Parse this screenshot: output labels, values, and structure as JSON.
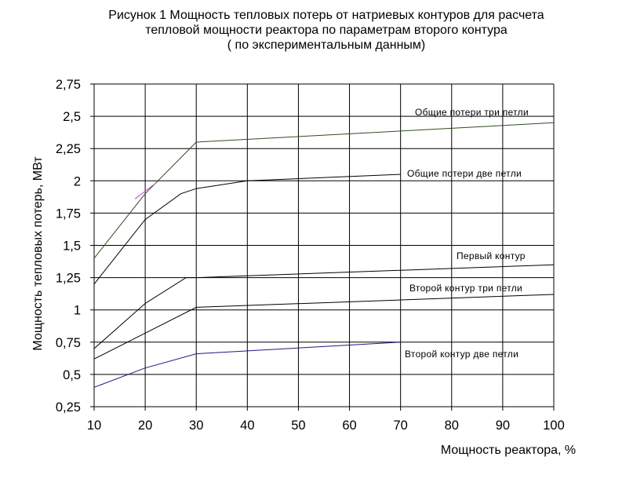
{
  "chart_data": {
    "type": "line",
    "title": [
      "Рисунок 1 Мощность тепловых потерь от натриевых контуров для расчета",
      "тепловой мощности реактора по параметрам второго контура",
      "( по экспериментальным данным)"
    ],
    "xlabel": "Мощность реактора, %",
    "ylabel": "Мощность тепловых потерь, МВт",
    "xlim": [
      10,
      100
    ],
    "ylim": [
      0.25,
      2.75
    ],
    "x_ticks": [
      "10",
      "20",
      "30",
      "40",
      "50",
      "60",
      "70",
      "80",
      "90",
      "100"
    ],
    "y_ticks": [
      "0,25",
      "0,5",
      "0,75",
      "1",
      "1,25",
      "1,5",
      "1,75",
      "2",
      "2,25",
      "2,5",
      "2,75"
    ],
    "grid": true,
    "series": [
      {
        "name": "Общие потери три петли",
        "color": "#2e4d1e",
        "points": [
          [
            10,
            1.4
          ],
          [
            20,
            1.9
          ],
          [
            30,
            2.3
          ],
          [
            100,
            2.45
          ]
        ]
      },
      {
        "name": "Общие потери две петли",
        "color": "#000000",
        "points": [
          [
            10,
            1.2
          ],
          [
            20,
            1.7
          ],
          [
            27,
            1.9
          ],
          [
            30,
            1.94
          ],
          [
            40,
            2.0
          ],
          [
            70,
            2.05
          ]
        ]
      },
      {
        "name": "Первый контур",
        "color": "#000000",
        "points": [
          [
            10,
            0.7
          ],
          [
            20,
            1.05
          ],
          [
            28,
            1.25
          ],
          [
            30,
            1.25
          ],
          [
            100,
            1.35
          ]
        ]
      },
      {
        "name": "Второй контур три петли",
        "color": "#000000",
        "points": [
          [
            10,
            0.62
          ],
          [
            20,
            0.82
          ],
          [
            30,
            1.02
          ],
          [
            100,
            1.12
          ]
        ]
      },
      {
        "name": "Второй контур две петли",
        "color": "#1a1a80",
        "points": [
          [
            10,
            0.4
          ],
          [
            20,
            0.55
          ],
          [
            30,
            0.66
          ],
          [
            70,
            0.75
          ]
        ]
      }
    ]
  }
}
